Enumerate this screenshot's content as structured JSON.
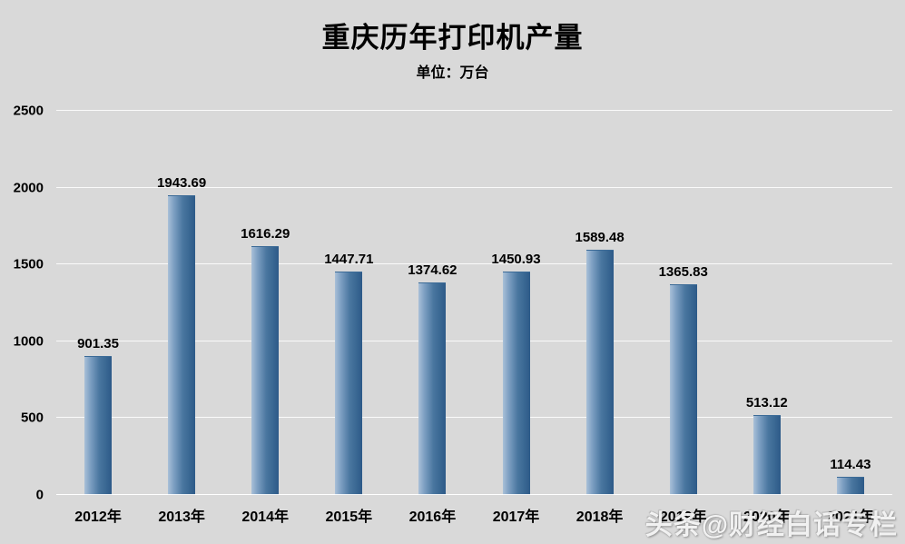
{
  "page": {
    "title": "重庆历年打印机产量",
    "subtitle": "单位：万台",
    "watermark": "头条@财经白话专栏"
  },
  "chart_data": {
    "type": "bar",
    "title": "重庆历年打印机产量",
    "subtitle": "单位：万台",
    "categories": [
      "2012年",
      "2013年",
      "2014年",
      "2015年",
      "2016年",
      "2017年",
      "2018年",
      "2019年",
      "2020年",
      "2021年"
    ],
    "values": [
      901.35,
      1943.69,
      1616.29,
      1447.71,
      1374.62,
      1450.93,
      1589.48,
      1365.83,
      513.12,
      114.43
    ],
    "ylabel": "",
    "xlabel": "",
    "ylim": [
      0,
      2500
    ],
    "yticks": [
      0,
      500,
      1000,
      1500,
      2000,
      2500
    ],
    "grid": true,
    "legend_position": "none",
    "background_color": "#d9d9d9",
    "bar_gradient": [
      "#a9c0d8",
      "#49769f",
      "#2d5a88"
    ],
    "gridline_color": "#ffffff"
  }
}
